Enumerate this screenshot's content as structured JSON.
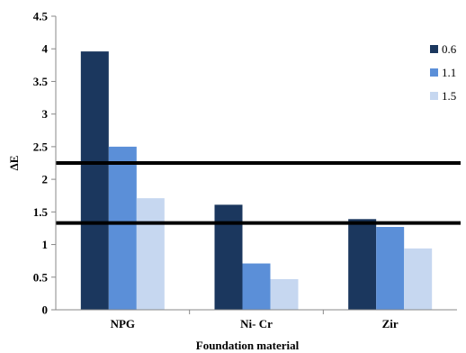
{
  "chart_data": {
    "type": "bar",
    "categories": [
      "NPG",
      "Ni- Cr",
      "Zir"
    ],
    "series": [
      {
        "name": "0.6",
        "color": "#1b375e",
        "values": [
          3.96,
          1.61,
          1.39
        ]
      },
      {
        "name": "1.1",
        "color": "#5b8fd8",
        "values": [
          2.5,
          0.71,
          1.27
        ]
      },
      {
        "name": "1.5",
        "color": "#c6d7f0",
        "values": [
          1.71,
          0.47,
          0.94
        ]
      }
    ],
    "xlabel": "Foundation material",
    "ylabel": "ΔE",
    "ylim": [
      0,
      4.5
    ],
    "yticks": [
      "0",
      "0.5",
      "1",
      "1.5",
      "2",
      "2.5",
      "3",
      "3.5",
      "4",
      "4.5"
    ],
    "reference_lines": [
      2.25,
      1.33
    ],
    "legend_position": "right",
    "grid": false
  }
}
